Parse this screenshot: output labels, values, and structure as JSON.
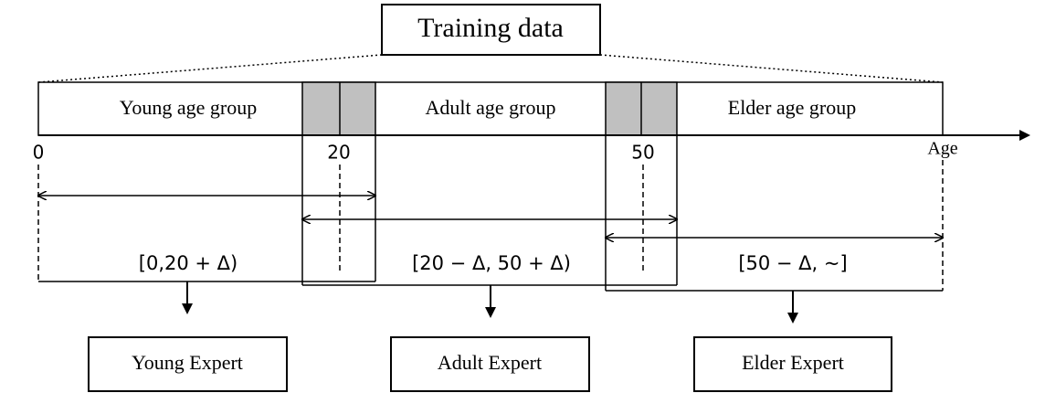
{
  "title": "Training data",
  "groups": [
    {
      "label": "Young age group"
    },
    {
      "label": "Adult age group"
    },
    {
      "label": "Elder age group"
    }
  ],
  "axis": {
    "ticks": [
      "0",
      "20",
      "50"
    ],
    "label": "Age"
  },
  "ranges": [
    "[0,20 + Δ)",
    "[20 − Δ, 50 + Δ)",
    "[50 − Δ, ~]"
  ],
  "experts": [
    "Young Expert",
    "Adult Expert",
    "Elder Expert"
  ]
}
